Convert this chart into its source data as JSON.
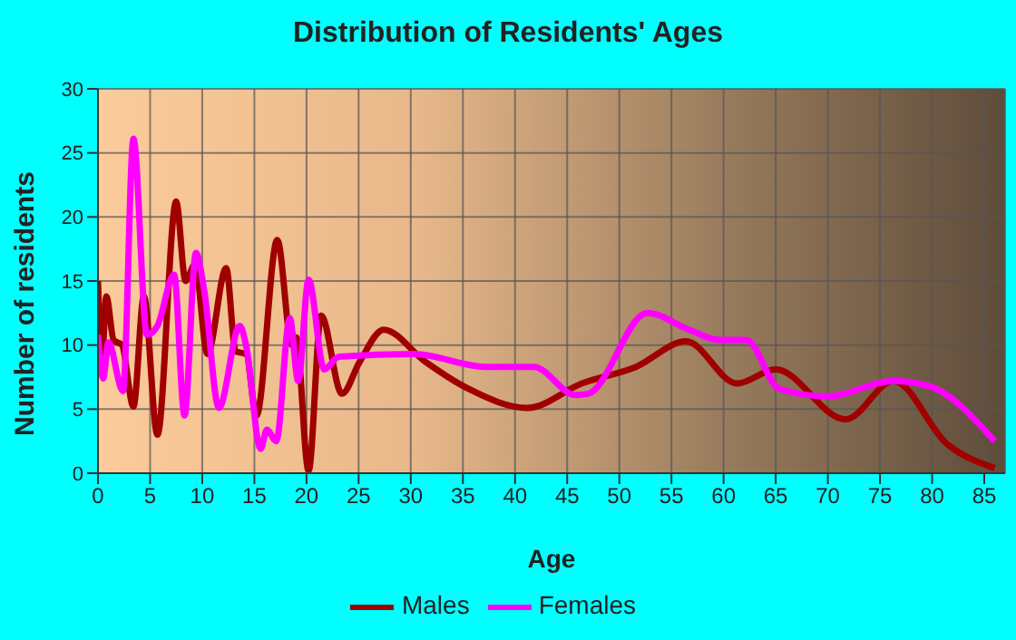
{
  "chart_data": {
    "type": "line",
    "title": "Distribution of Residents' Ages",
    "xlabel": "Age",
    "ylabel": "Number of residents",
    "xlim": [
      0,
      87
    ],
    "xticks": [
      0,
      5,
      10,
      15,
      20,
      25,
      30,
      35,
      40,
      45,
      50,
      55,
      60,
      65,
      70,
      75,
      80,
      85
    ],
    "ylim": [
      0,
      30
    ],
    "yticks": [
      0,
      5,
      10,
      15,
      20,
      25,
      30
    ],
    "grid": true,
    "legend": "bottom",
    "marker": "none",
    "line_style": "solid",
    "series": [
      {
        "name": "Males",
        "color": "#a00000",
        "x": [
          0,
          0.4,
          0.8,
          1.5,
          2.3,
          3.4,
          4.4,
          5.7,
          7.5,
          8.4,
          9.3,
          10.5,
          12.3,
          13.2,
          14.2,
          15.2,
          17.2,
          18.6,
          19,
          20.2,
          21.4,
          23.4,
          25.1,
          27.4,
          31.4,
          35.5,
          41.2,
          46.4,
          51.6,
          56.4,
          61.3,
          65,
          71.7,
          76.3,
          81.4,
          86
        ],
        "values": [
          15,
          9.1,
          13.8,
          10.4,
          10,
          5.2,
          13.8,
          3,
          21.2,
          15,
          16.3,
          9.3,
          16,
          9.5,
          9.3,
          4.5,
          18.2,
          10,
          10.6,
          0.2,
          12.3,
          6.2,
          8.7,
          11.2,
          8.7,
          6.6,
          5.1,
          7,
          8.3,
          10.3,
          7,
          8.1,
          4.2,
          7.2,
          2.3,
          0.4
        ]
      },
      {
        "name": "Females",
        "color": "#ff00ff",
        "x": [
          0,
          0.5,
          1,
          2.4,
          3.4,
          4.7,
          5.7,
          7.3,
          8.3,
          9.4,
          10.2,
          11.6,
          13.6,
          14.2,
          15.6,
          16.2,
          17.1,
          18.4,
          19.2,
          20.2,
          21.7,
          23.1,
          30.3,
          37.2,
          41.8,
          45.8,
          47,
          52.7,
          56.7,
          59.6,
          62.2,
          65.3,
          69.9,
          76.3,
          79.7,
          86
        ],
        "values": [
          10.8,
          7.4,
          10.2,
          6.4,
          26.1,
          10.8,
          11.5,
          15.5,
          4.5,
          17.2,
          14.2,
          5.1,
          11.5,
          10,
          1.9,
          3.4,
          2.5,
          12.1,
          7.2,
          15.1,
          8.1,
          9.1,
          9.3,
          8.3,
          8.3,
          6.1,
          6.2,
          12.5,
          11.2,
          10.4,
          10.4,
          6.6,
          6,
          7.2,
          6.8,
          2.5
        ]
      }
    ]
  }
}
